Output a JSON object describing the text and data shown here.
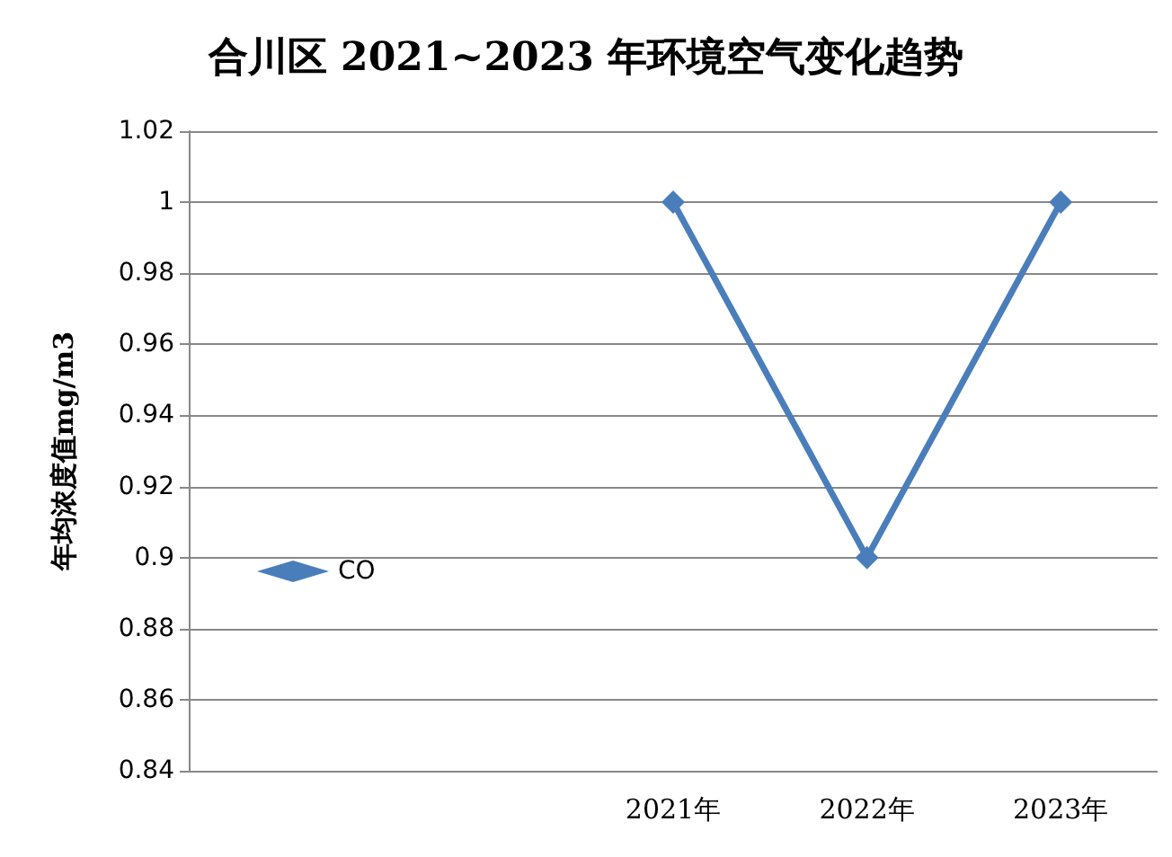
{
  "chart_data": {
    "type": "line",
    "title": "合川区 2021~2023 年环境空气变化趋势",
    "ylabel": "年均浓度值mg/m3",
    "categories": [
      null,
      null,
      "2021年",
      "2022年",
      "2023年"
    ],
    "series": [
      {
        "name": "CO",
        "color": "#4a7ebb",
        "values": [
          null,
          null,
          1,
          0.9,
          1
        ]
      }
    ],
    "ylim": [
      0.84,
      1.02
    ],
    "yticks": [
      0.84,
      0.86,
      0.88,
      0.9,
      0.92,
      0.94,
      0.96,
      0.98,
      1,
      1.02
    ],
    "grid": "y",
    "legend": "left",
    "marker": "diamond",
    "line_style": "solid"
  }
}
